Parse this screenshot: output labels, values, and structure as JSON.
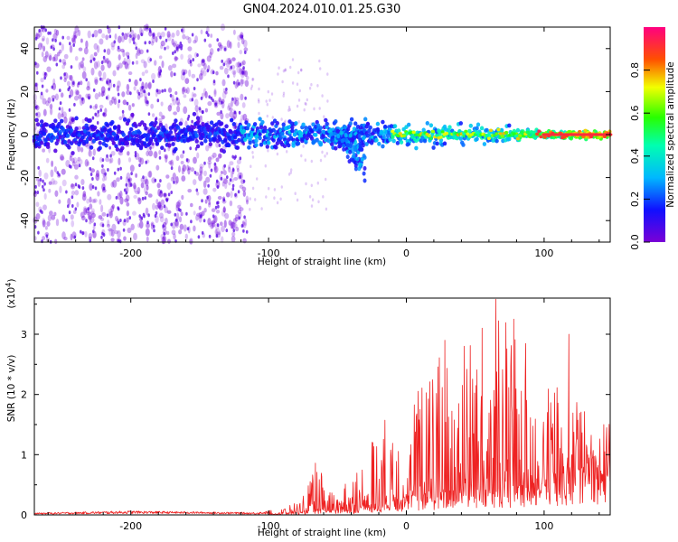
{
  "title": "GN04.2024.010.01.25.G30",
  "chart_data": [
    {
      "type": "heatmap",
      "xlabel": "Height of straight line (km)",
      "ylabel": "Frequency (Hz)",
      "xlim": [
        -270,
        148
      ],
      "ylim": [
        -50,
        50
      ],
      "x_ticks": [
        -200,
        -100,
        0,
        100
      ],
      "y_ticks": [
        -40,
        -20,
        0,
        20,
        40
      ],
      "colorbar": {
        "label": "Normalized spectral amplitude",
        "range": [
          0.0,
          1.0
        ],
        "ticks": [
          0.0,
          0.2,
          0.4,
          0.6,
          0.8
        ],
        "colormap": "rainbow (violet to blue to cyan to green to yellow to red to magenta)"
      },
      "features": {
        "central_band_frequency_hz": 0,
        "central_band_half_width_hz": 8,
        "scattered_noise_region_km": [
          -270,
          -115
        ],
        "dip_feature_km": [
          -55,
          -30
        ],
        "dip_min_frequency_hz": -22,
        "strong_signal_region_km": [
          -10,
          148
        ]
      },
      "grid": false
    },
    {
      "type": "line",
      "series": [
        {
          "color": "#ee2222"
        }
      ],
      "xlabel": "Height of straight line (km)",
      "ylabel": "SNR (10 * v/v)",
      "y_multiplier": "(x10^4)",
      "xlim": [
        -270,
        148
      ],
      "ylim": [
        0,
        3.6
      ],
      "x_ticks": [
        -200,
        -100,
        0,
        100
      ],
      "y_ticks": [
        0,
        1,
        2,
        3
      ],
      "envelope": {
        "x": [
          -270,
          -200,
          -150,
          -110,
          -90,
          -75,
          -65,
          -55,
          -45,
          -30,
          -20,
          -10,
          0,
          10,
          20,
          30,
          40,
          50,
          60,
          70,
          80,
          90,
          100,
          110,
          120,
          130,
          140,
          148
        ],
        "baseline": [
          0.01,
          0.02,
          0.02,
          0.01,
          0.02,
          0.05,
          0.1,
          0.08,
          0.08,
          0.15,
          0.2,
          0.25,
          0.3,
          0.35,
          0.4,
          0.45,
          0.5,
          0.55,
          0.6,
          0.55,
          0.5,
          0.5,
          0.55,
          0.6,
          0.7,
          0.8,
          0.9,
          0.95
        ],
        "upper": [
          0.04,
          0.08,
          0.06,
          0.05,
          0.1,
          0.3,
          0.85,
          0.45,
          0.5,
          0.95,
          1.65,
          1.6,
          1.9,
          2.3,
          2.6,
          2.9,
          2.9,
          3.2,
          3.4,
          3.6,
          3.0,
          2.8,
          2.5,
          2.3,
          2.2,
          1.7,
          1.6,
          1.5
        ]
      },
      "peaks": [
        [
          -66,
          0.86
        ],
        [
          10,
          1.75
        ],
        [
          28,
          2.9
        ],
        [
          42,
          2.8
        ],
        [
          55,
          3.1
        ],
        [
          65,
          3.58
        ],
        [
          78,
          3.25
        ],
        [
          118,
          3.0
        ]
      ],
      "grid": false
    }
  ]
}
